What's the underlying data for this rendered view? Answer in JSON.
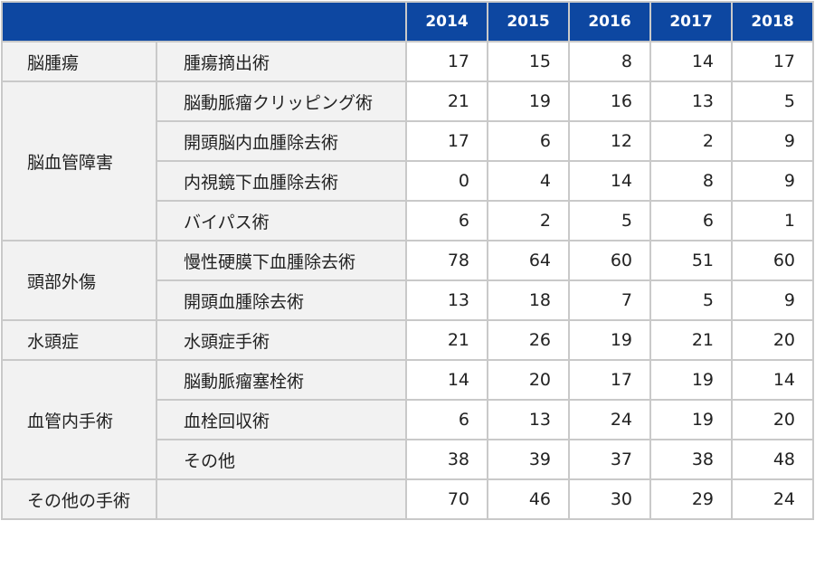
{
  "header": {
    "years": [
      "2014",
      "2015",
      "2016",
      "2017",
      "2018"
    ]
  },
  "groups": [
    {
      "category": "脳腫瘍",
      "rows": [
        {
          "procedure": "腫瘍摘出術",
          "values": [
            "17",
            "15",
            "8",
            "14",
            "17"
          ]
        }
      ]
    },
    {
      "category": "脳血管障害",
      "rows": [
        {
          "procedure": "脳動脈瘤クリッピング術",
          "values": [
            "21",
            "19",
            "16",
            "13",
            "5"
          ]
        },
        {
          "procedure": "開頭脳内血腫除去術",
          "values": [
            "17",
            "6",
            "12",
            "2",
            "9"
          ]
        },
        {
          "procedure": "内視鏡下血腫除去術",
          "values": [
            "0",
            "4",
            "14",
            "8",
            "9"
          ]
        },
        {
          "procedure": "バイパス術",
          "values": [
            "6",
            "2",
            "5",
            "6",
            "1"
          ]
        }
      ]
    },
    {
      "category": "頭部外傷",
      "rows": [
        {
          "procedure": "慢性硬膜下血腫除去術",
          "values": [
            "78",
            "64",
            "60",
            "51",
            "60"
          ]
        },
        {
          "procedure": "開頭血腫除去術",
          "values": [
            "13",
            "18",
            "7",
            "5",
            "9"
          ]
        }
      ]
    },
    {
      "category": "水頭症",
      "rows": [
        {
          "procedure": "水頭症手術",
          "values": [
            "21",
            "26",
            "19",
            "21",
            "20"
          ]
        }
      ]
    },
    {
      "category": "血管内手術",
      "rows": [
        {
          "procedure": "脳動脈瘤塞栓術",
          "values": [
            "14",
            "20",
            "17",
            "19",
            "14"
          ]
        },
        {
          "procedure": "血栓回収術",
          "values": [
            "6",
            "13",
            "24",
            "19",
            "20"
          ]
        },
        {
          "procedure": "その他",
          "values": [
            "38",
            "39",
            "37",
            "38",
            "48"
          ]
        }
      ]
    },
    {
      "category": "その他の手術",
      "rows": [
        {
          "procedure": "",
          "values": [
            "70",
            "46",
            "30",
            "29",
            "24"
          ]
        }
      ]
    }
  ],
  "colors": {
    "header_background": "#0d47a1",
    "header_text": "#ffffff",
    "label_background": "#f2f2f2",
    "grid_line": "#c9c9c9"
  }
}
